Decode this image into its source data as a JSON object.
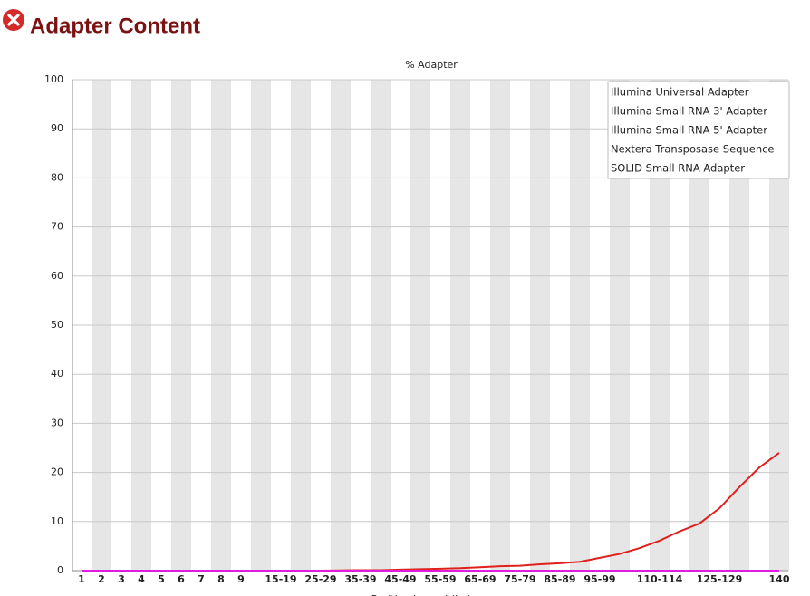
{
  "chart_data": {
    "type": "line",
    "page_title": "Adapter Content",
    "title": "% Adapter",
    "x_label": "Position in read (bp)",
    "categories": [
      "1",
      "2",
      "3",
      "4",
      "5",
      "6",
      "7",
      "8",
      "9",
      null,
      "15-19",
      null,
      "25-29",
      null,
      "35-39",
      null,
      "45-49",
      null,
      "55-59",
      null,
      "65-69",
      null,
      "75-79",
      null,
      "85-89",
      null,
      "95-99",
      null,
      null,
      "110-114",
      null,
      null,
      "125-129",
      null,
      null,
      "140"
    ],
    "series": [
      {
        "name": "Illumina Universal Adapter",
        "color": "#e0201c",
        "values": [
          0,
          0,
          0,
          0,
          0,
          0,
          0,
          0,
          0,
          0,
          0,
          0,
          0,
          0.05,
          0.1,
          0.1,
          0.2,
          0.3,
          0.4,
          0.5,
          0.7,
          0.9,
          1.0,
          1.3,
          1.5,
          1.8,
          2.6,
          3.4,
          4.6,
          6.1,
          8.0,
          9.6,
          12.7,
          17.0,
          21.0,
          24.0
        ]
      },
      {
        "name": "Illumina Small RNA 3' Adapter",
        "color": "#1c1ce0",
        "values": [
          0,
          0,
          0,
          0,
          0,
          0,
          0,
          0,
          0,
          0,
          0,
          0,
          0,
          0,
          0,
          0,
          0,
          0,
          0,
          0,
          0,
          0,
          0,
          0,
          0,
          0,
          0,
          0,
          0,
          0,
          0,
          0,
          0,
          0,
          0,
          0
        ]
      },
      {
        "name": "Illumina Small RNA 5' Adapter",
        "color": "#1cc81c",
        "values": [
          0,
          0,
          0,
          0,
          0,
          0,
          0,
          0,
          0,
          0,
          0,
          0,
          0,
          0,
          0,
          0,
          0,
          0,
          0,
          0,
          0,
          0,
          0,
          0,
          0,
          0,
          0,
          0,
          0,
          0,
          0,
          0,
          0,
          0,
          0,
          0
        ]
      },
      {
        "name": "Nextera Transposase Sequence",
        "color": "#444444",
        "values": [
          0,
          0,
          0,
          0,
          0,
          0,
          0,
          0,
          0,
          0,
          0,
          0,
          0,
          0,
          0,
          0,
          0,
          0,
          0,
          0,
          0,
          0,
          0,
          0,
          0,
          0,
          0,
          0,
          0,
          0,
          0,
          0,
          0,
          0,
          0,
          0
        ]
      },
      {
        "name": "SOLID Small RNA Adapter",
        "color": "#e01ce0",
        "values": [
          0,
          0,
          0,
          0,
          0,
          0,
          0,
          0,
          0,
          0,
          0,
          0,
          0,
          0,
          0,
          0,
          0,
          0,
          0,
          0,
          0,
          0,
          0,
          0,
          0,
          0,
          0,
          0,
          0,
          0,
          0,
          0,
          0,
          0,
          0,
          0
        ]
      }
    ],
    "ylim": [
      0,
      100
    ],
    "yticks": [
      0,
      10,
      20,
      30,
      40,
      50,
      60,
      70,
      80,
      90,
      100
    ],
    "grid": true,
    "legend": "upper right"
  }
}
